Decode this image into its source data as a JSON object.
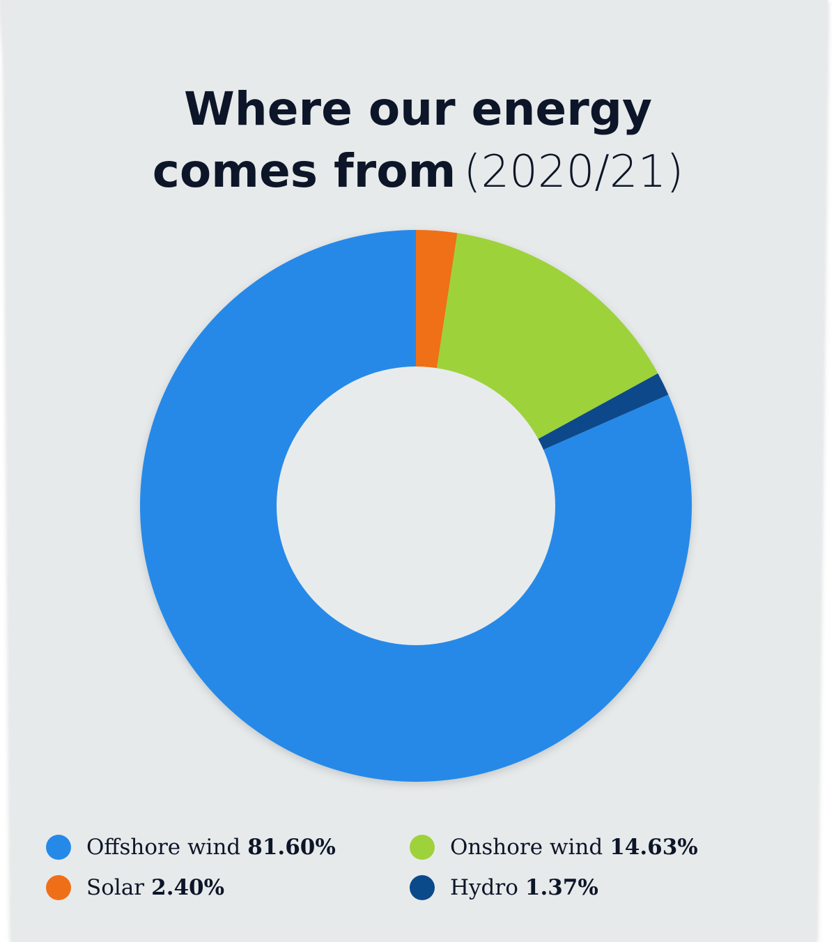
{
  "title": {
    "line1": "Where our energy",
    "line2_bold": "comes from",
    "line2_light": "(2020/21)"
  },
  "colors": {
    "background": "#e7eaeb",
    "inner_hole": "#e8ebec"
  },
  "chart_data": {
    "type": "pie",
    "donut": true,
    "title": "Where our energy comes from (2020/21)",
    "start_angle_deg": 0,
    "direction": "clockwise",
    "series": [
      {
        "name": "Solar",
        "value": 2.4,
        "label": "2.40%",
        "color": "#ef6f19"
      },
      {
        "name": "Onshore wind",
        "value": 14.63,
        "label": "14.63%",
        "color": "#9dd23a"
      },
      {
        "name": "Hydro",
        "value": 1.37,
        "label": "1.37%",
        "color": "#0a4a8a"
      },
      {
        "name": "Offshore wind",
        "value": 81.6,
        "label": "81.60%",
        "color": "#2589e8"
      }
    ],
    "legend_order": [
      "Offshore wind",
      "Onshore wind",
      "Solar",
      "Hydro"
    ],
    "legend_placement": "bottom"
  },
  "legend": [
    {
      "name": "Offshore wind",
      "value": "81.60%",
      "color": "#2589e8"
    },
    {
      "name": "Onshore wind",
      "value": "14.63%",
      "color": "#9dd23a"
    },
    {
      "name": "Solar",
      "value": "2.40%",
      "color": "#ef6f19"
    },
    {
      "name": "Hydro",
      "value": "1.37%",
      "color": "#0a4a8a"
    }
  ]
}
